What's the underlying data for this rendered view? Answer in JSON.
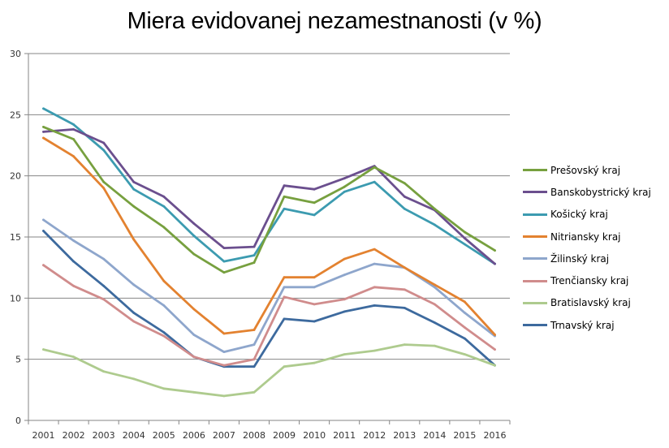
{
  "chart_data": {
    "type": "line",
    "title": "Miera evidovanej nezamestnanosti (v %)",
    "xlabel": "",
    "ylabel": "",
    "ylim": [
      0,
      30
    ],
    "yticks": [
      "0",
      "5",
      "10",
      "15",
      "20",
      "25",
      "30"
    ],
    "grid": true,
    "legend_position": "right",
    "categories": [
      "2001",
      "2002",
      "2003",
      "2004",
      "2005",
      "2006",
      "2007",
      "2008",
      "2009",
      "2010",
      "2011",
      "2012",
      "2013",
      "2014",
      "2015",
      "2016"
    ],
    "series": [
      {
        "name": "Prešovský kraj",
        "color": "#77a03f",
        "values": [
          24.0,
          23.0,
          19.5,
          17.5,
          15.8,
          13.6,
          12.1,
          12.9,
          18.3,
          17.8,
          19.1,
          20.7,
          19.4,
          17.3,
          15.4,
          13.9
        ]
      },
      {
        "name": "Banskobystrický kraj",
        "color": "#6b4f8e",
        "values": [
          23.6,
          23.8,
          22.7,
          19.5,
          18.3,
          16.1,
          14.1,
          14.2,
          19.2,
          18.9,
          19.8,
          20.8,
          18.3,
          17.2,
          14.9,
          12.8
        ]
      },
      {
        "name": "Košický kraj",
        "color": "#3c9bb0",
        "values": [
          25.5,
          24.2,
          22.1,
          18.9,
          17.5,
          15.1,
          13.0,
          13.5,
          17.3,
          16.8,
          18.7,
          19.5,
          17.3,
          16.0,
          14.4,
          12.8
        ]
      },
      {
        "name": "Nitriansky kraj",
        "color": "#e38230",
        "values": [
          23.1,
          21.6,
          19.0,
          14.8,
          11.4,
          9.1,
          7.1,
          7.4,
          11.7,
          11.7,
          13.2,
          14.0,
          12.5,
          11.1,
          9.7,
          7.0
        ]
      },
      {
        "name": "Žilinský kraj",
        "color": "#8ea6cc",
        "values": [
          16.4,
          14.7,
          13.2,
          11.1,
          9.4,
          7.0,
          5.6,
          6.2,
          10.9,
          10.9,
          11.9,
          12.8,
          12.5,
          10.9,
          8.8,
          6.9
        ]
      },
      {
        "name": "Trenčiansky kraj",
        "color": "#d08c8c",
        "values": [
          12.7,
          11.0,
          9.9,
          8.1,
          6.9,
          5.2,
          4.5,
          5.0,
          10.1,
          9.5,
          9.9,
          10.9,
          10.7,
          9.5,
          7.6,
          5.8
        ]
      },
      {
        "name": "Bratislavský kraj",
        "color": "#aecb8e",
        "values": [
          5.8,
          5.2,
          4.0,
          3.4,
          2.6,
          2.3,
          2.0,
          2.3,
          4.4,
          4.7,
          5.4,
          5.7,
          6.2,
          6.1,
          5.4,
          4.5
        ]
      },
      {
        "name": "Trnavský kraj",
        "color": "#3d6a9e",
        "values": [
          15.5,
          13.0,
          11.0,
          8.8,
          7.2,
          5.2,
          4.4,
          4.4,
          8.3,
          8.1,
          8.9,
          9.4,
          9.2,
          8.0,
          6.7,
          4.5
        ]
      }
    ]
  }
}
